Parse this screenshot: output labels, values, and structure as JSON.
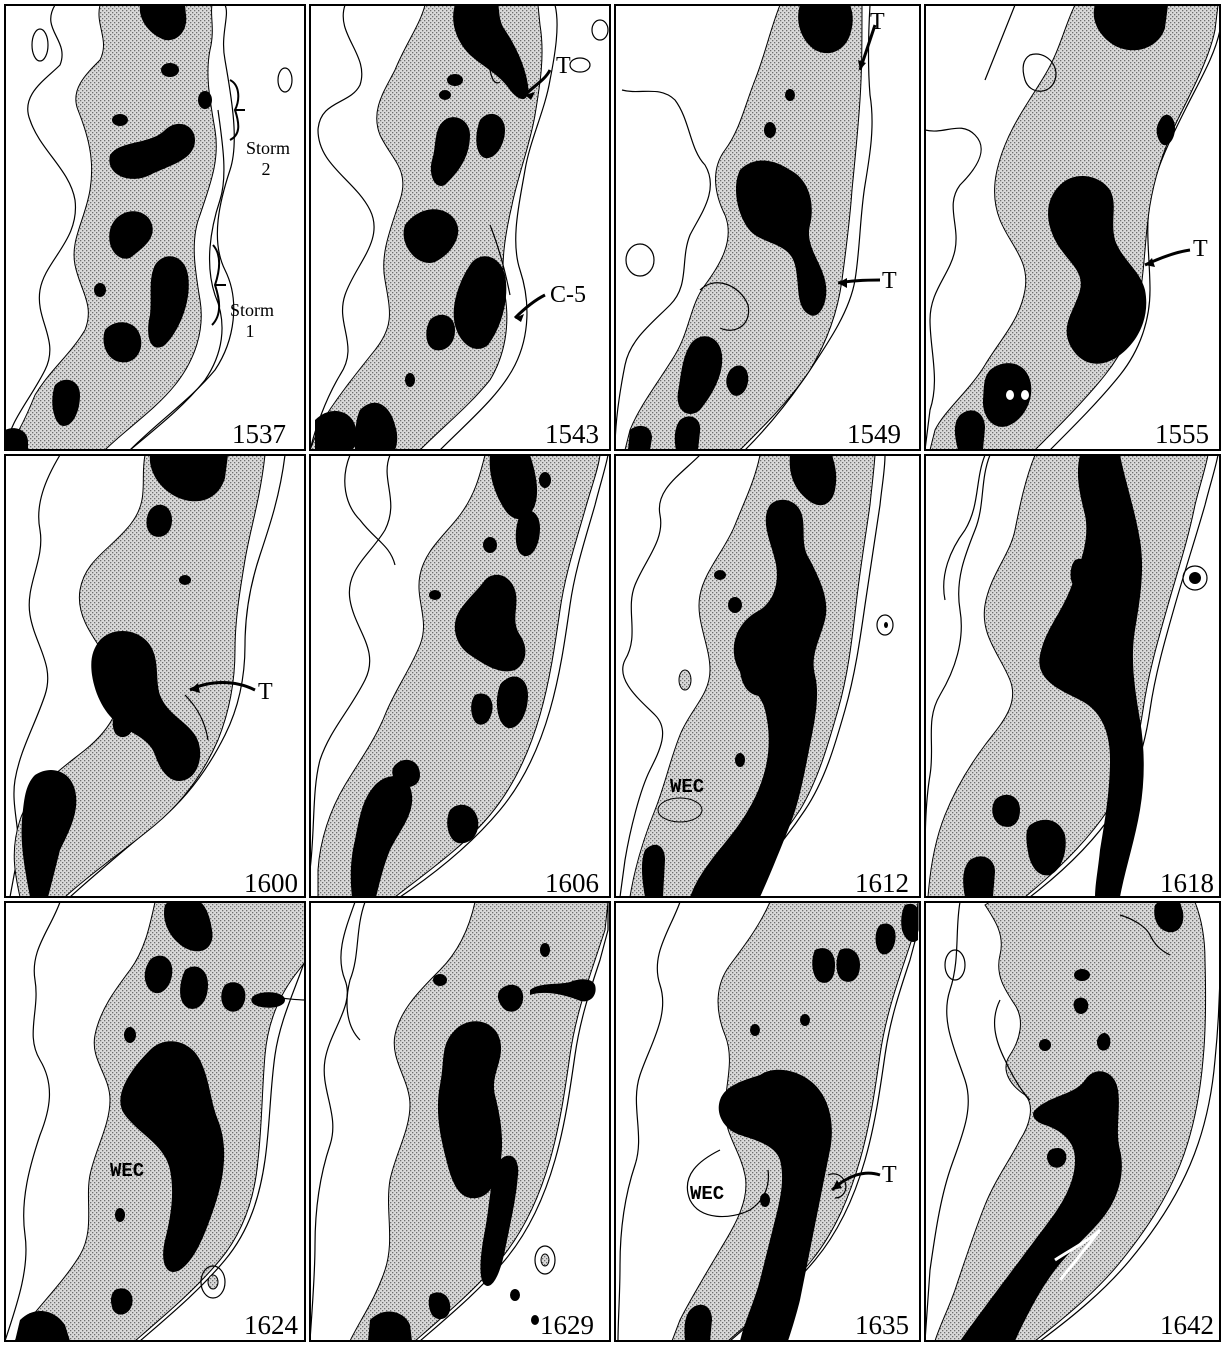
{
  "panels": [
    {
      "time": "1537",
      "annotations": {
        "storm2_line1": "Storm",
        "storm2_line2": "2",
        "storm1_line1": "Storm",
        "storm1_line2": "1"
      }
    },
    {
      "time": "1543",
      "annotations": {
        "t": "T",
        "c5": "C-5"
      }
    },
    {
      "time": "1549",
      "annotations": {
        "t_upper": "T",
        "t_lower": "T"
      }
    },
    {
      "time": "1555",
      "annotations": {
        "t": "T"
      }
    },
    {
      "time": "1600",
      "annotations": {
        "t": "T"
      }
    },
    {
      "time": "1606",
      "annotations": {}
    },
    {
      "time": "1612",
      "annotations": {
        "wec": "WEC"
      }
    },
    {
      "time": "1618",
      "annotations": {}
    },
    {
      "time": "1624",
      "annotations": {
        "wec": "WEC"
      }
    },
    {
      "time": "1629",
      "annotations": {}
    },
    {
      "time": "1635",
      "annotations": {
        "wec": "WEC",
        "t": "T"
      }
    },
    {
      "time": "1642",
      "annotations": {}
    }
  ],
  "colors": {
    "border": "#000000",
    "stipple_fill": "#c8c8c8",
    "core_fill": "#000000",
    "contour": "#000000",
    "background": "#ffffff"
  }
}
